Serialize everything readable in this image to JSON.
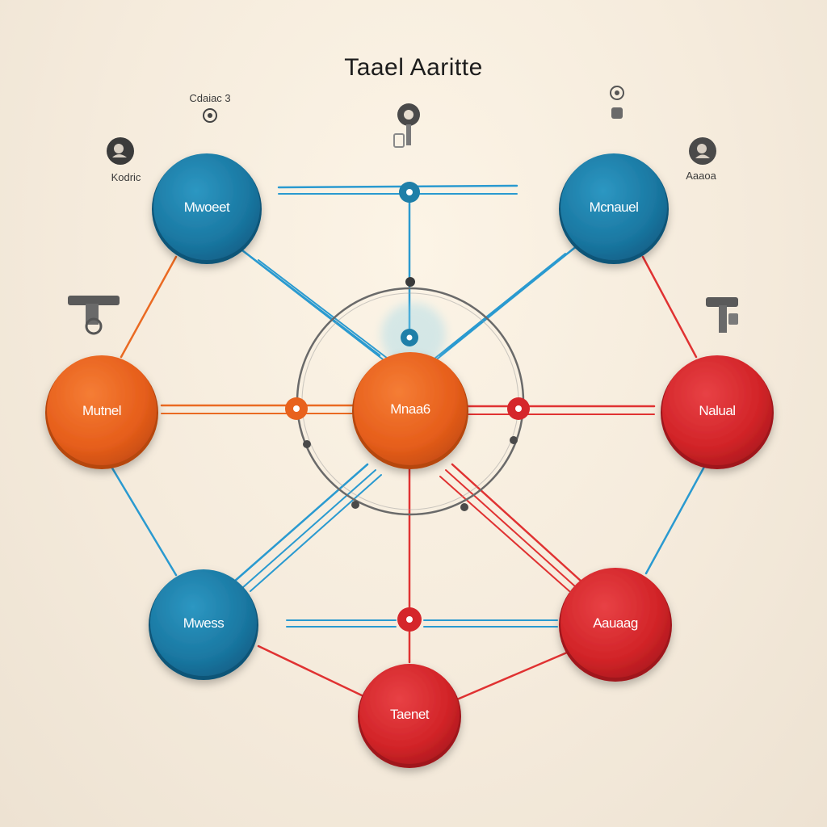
{
  "diagram": {
    "title": "Taael Aaritte",
    "colors": {
      "blue": "#1f7fa8",
      "orange": "#e8621d",
      "red": "#d5262b",
      "line_blue": "#2a9ad0",
      "line_red": "#e03232",
      "line_orange": "#ea6a22",
      "ring": "#6a6a6a",
      "background": "#f6ecdd"
    },
    "nodes": [
      {
        "id": "top-left",
        "label": "Mwoeet",
        "color": "blue"
      },
      {
        "id": "top-right",
        "label": "Mcnauel",
        "color": "blue"
      },
      {
        "id": "mid-left",
        "label": "Mutnel",
        "color": "orange"
      },
      {
        "id": "center",
        "label": "Mnaa6",
        "color": "orange"
      },
      {
        "id": "mid-right",
        "label": "Nalual",
        "color": "red"
      },
      {
        "id": "bottom-left",
        "label": "Mwess",
        "color": "blue"
      },
      {
        "id": "bottom-right",
        "label": "Aauaag",
        "color": "red"
      },
      {
        "id": "bottom",
        "label": "Taenet",
        "color": "red"
      }
    ],
    "annotations": [
      {
        "id": "top-left-caption",
        "text": "Cdaiac 3",
        "icon": "person-pin-icon"
      },
      {
        "id": "left-caption",
        "text": "Kodric",
        "icon": "person-avatar-icon"
      },
      {
        "id": "right-caption",
        "text": "Aaaoa",
        "icon": "person-avatar-icon"
      },
      {
        "id": "top-center-figure",
        "text": "",
        "icon": "person-pin-icon"
      },
      {
        "id": "top-right-figure",
        "text": "",
        "icon": "person-pin-icon"
      },
      {
        "id": "left-figure",
        "text": "",
        "icon": "wrench-figure-icon"
      },
      {
        "id": "right-figure",
        "text": "",
        "icon": "wrench-figure-icon"
      }
    ]
  }
}
